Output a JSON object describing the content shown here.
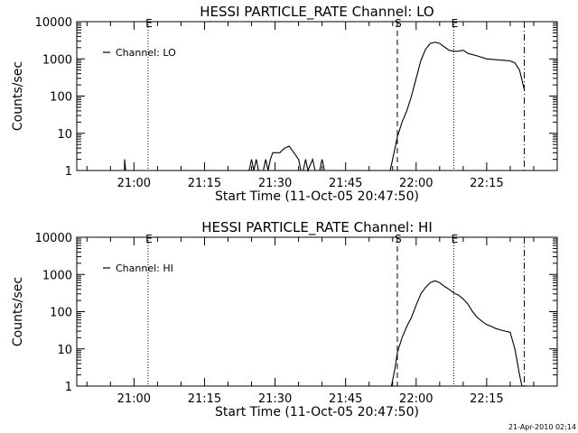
{
  "footer_timestamp": "21-Apr-2010 02:14",
  "chart_data": [
    {
      "type": "line",
      "title": "HESSI PARTICLE_RATE Channel: LO",
      "xlabel": "Start Time (11-Oct-05 20:47:50)",
      "ylabel": "Counts/sec",
      "y_scale": "log",
      "ylim": [
        1,
        10000
      ],
      "xlim": [
        "20:47:50",
        "22:30:00"
      ],
      "x_ticks": [
        "21:00",
        "21:15",
        "21:30",
        "21:45",
        "22:00",
        "22:15"
      ],
      "y_ticks": [
        "1",
        "10",
        "100",
        "1000",
        "10000"
      ],
      "legend": {
        "label": "Channel: LO",
        "position": "top-left"
      },
      "markers": [
        {
          "time": "21:03",
          "style": "dotted",
          "label": "E"
        },
        {
          "time": "21:56",
          "style": "dashed",
          "label": "S"
        },
        {
          "time": "22:08",
          "style": "dotted",
          "label": "E"
        },
        {
          "time": "22:23",
          "style": "dash-dot",
          "label": ""
        }
      ],
      "series": [
        {
          "name": "Channel: LO",
          "segments": [
            [
              [
                "20:58:00",
                1.0
              ],
              [
                "20:58:00",
                2.0
              ],
              [
                "20:58:15",
                1.0
              ]
            ],
            [
              [
                "21:24:30",
                1.0
              ],
              [
                "21:25:00",
                2.0
              ],
              [
                "21:25:30",
                1.0
              ],
              [
                "21:26:00",
                2.0
              ],
              [
                "21:26:30",
                1.0
              ]
            ],
            [
              [
                "21:27:30",
                1.0
              ],
              [
                "21:28:00",
                2.0
              ],
              [
                "21:28:30",
                1.0
              ],
              [
                "21:29:00",
                2.0
              ],
              [
                "21:29:30",
                3.0
              ],
              [
                "21:31:00",
                3.0
              ],
              [
                "21:32:00",
                4.0
              ],
              [
                "21:33:00",
                4.5
              ],
              [
                "21:34:00",
                3.0
              ],
              [
                "21:35:00",
                2.0
              ],
              [
                "21:35:30",
                1.0
              ]
            ],
            [
              [
                "21:36:00",
                1.0
              ],
              [
                "21:36:30",
                2.0
              ],
              [
                "21:37:00",
                1.0
              ],
              [
                "21:38:00",
                2.0
              ],
              [
                "21:38:30",
                1.0
              ]
            ],
            [
              [
                "21:39:30",
                1.0
              ],
              [
                "21:40:00",
                2.0
              ],
              [
                "21:40:30",
                1.0
              ]
            ],
            [
              [
                "21:54:30",
                1.0
              ],
              [
                "21:55:00",
                2.0
              ],
              [
                "21:55:30",
                4.0
              ],
              [
                "21:56:00",
                8.0
              ],
              [
                "21:57:00",
                20.0
              ],
              [
                "21:58:00",
                40.0
              ],
              [
                "21:59:00",
                100.0
              ],
              [
                "22:00:00",
                300.0
              ],
              [
                "22:01:00",
                900.0
              ],
              [
                "22:02:00",
                1800.0
              ],
              [
                "22:03:00",
                2600.0
              ],
              [
                "22:04:00",
                2800.0
              ],
              [
                "22:05:00",
                2600.0
              ],
              [
                "22:06:00",
                2100.0
              ],
              [
                "22:07:00",
                1700.0
              ],
              [
                "22:08:00",
                1600.0
              ],
              [
                "22:09:00",
                1600.0
              ],
              [
                "22:10:00",
                1700.0
              ],
              [
                "22:11:00",
                1400.0
              ],
              [
                "22:13:00",
                1200.0
              ],
              [
                "22:15:00",
                1000.0
              ],
              [
                "22:17:00",
                950.0
              ],
              [
                "22:19:00",
                900.0
              ],
              [
                "22:20:00",
                880.0
              ],
              [
                "22:21:00",
                780.0
              ],
              [
                "22:22:00",
                500.0
              ],
              [
                "22:23:00",
                150.0
              ]
            ]
          ]
        }
      ]
    },
    {
      "type": "line",
      "title": "HESSI PARTICLE_RATE Channel: HI",
      "xlabel": "Start Time (11-Oct-05 20:47:50)",
      "ylabel": "Counts/sec",
      "y_scale": "log",
      "ylim": [
        1,
        10000
      ],
      "xlim": [
        "20:47:50",
        "22:30:00"
      ],
      "x_ticks": [
        "21:00",
        "21:15",
        "21:30",
        "21:45",
        "22:00",
        "22:15"
      ],
      "y_ticks": [
        "1",
        "10",
        "100",
        "1000",
        "10000"
      ],
      "legend": {
        "label": "Channel: HI",
        "position": "top-left"
      },
      "markers": [
        {
          "time": "21:03",
          "style": "dotted",
          "label": "E"
        },
        {
          "time": "21:56",
          "style": "dashed",
          "label": "S"
        },
        {
          "time": "22:08",
          "style": "dotted",
          "label": "E"
        },
        {
          "time": "22:23",
          "style": "dash-dot",
          "label": ""
        }
      ],
      "series": [
        {
          "name": "Channel: HI",
          "segments": [
            [
              [
                "21:54:45",
                1.0
              ],
              [
                "21:55:30",
                3.0
              ],
              [
                "21:56:00",
                8.0
              ],
              [
                "21:57:00",
                20.0
              ],
              [
                "21:58:00",
                40.0
              ],
              [
                "21:59:00",
                70.0
              ],
              [
                "22:00:00",
                150.0
              ],
              [
                "22:01:00",
                300.0
              ],
              [
                "22:02:00",
                450.0
              ],
              [
                "22:03:00",
                600.0
              ],
              [
                "22:04:00",
                680.0
              ],
              [
                "22:05:00",
                600.0
              ],
              [
                "22:06:00",
                480.0
              ],
              [
                "22:07:00",
                400.0
              ],
              [
                "22:08:00",
                320.0
              ],
              [
                "22:09:00",
                280.0
              ],
              [
                "22:10:00",
                220.0
              ],
              [
                "22:11:00",
                160.0
              ],
              [
                "22:12:00",
                100.0
              ],
              [
                "22:13:00",
                70.0
              ],
              [
                "22:14:00",
                55.0
              ],
              [
                "22:15:00",
                45.0
              ],
              [
                "22:16:00",
                40.0
              ],
              [
                "22:17:00",
                35.0
              ],
              [
                "22:18:00",
                32.0
              ],
              [
                "22:19:00",
                30.0
              ],
              [
                "22:20:00",
                28.0
              ],
              [
                "22:21:00",
                10.0
              ],
              [
                "22:22:00",
                2.0
              ],
              [
                "22:22:30",
                1.0
              ]
            ]
          ]
        }
      ]
    }
  ]
}
